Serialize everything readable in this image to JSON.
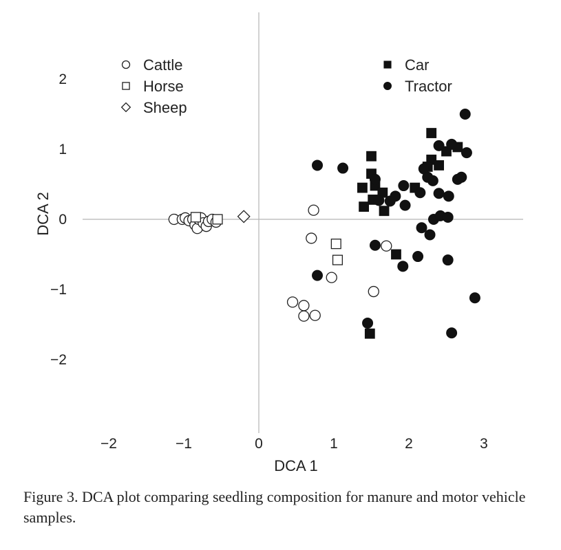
{
  "chart_data": {
    "type": "scatter",
    "xlabel": "DCA 1",
    "ylabel": "DCA 2",
    "xlim": [
      -2.5,
      3.5
    ],
    "ylim": [
      -3,
      3
    ],
    "xticks": [
      -2,
      -1,
      0,
      1,
      2,
      3
    ],
    "yticks": [
      -2,
      -1,
      0,
      1,
      2
    ],
    "tick_labels_x": [
      "−2",
      "−1",
      "0",
      "1",
      "2",
      "3"
    ],
    "tick_labels_y": [
      "−2",
      "−1",
      "0",
      "1",
      "2"
    ],
    "grid": false,
    "zero_lines": true,
    "legend": [
      {
        "group": "left",
        "entries": [
          "Cattle",
          "Horse",
          "Sheep"
        ]
      },
      {
        "group": "right",
        "entries": [
          "Car",
          "Tractor"
        ]
      }
    ],
    "series": [
      {
        "name": "Cattle",
        "marker": "circle",
        "filled": false,
        "points": [
          [
            -1.13,
            0.0
          ],
          [
            -1.02,
            0.0
          ],
          [
            -0.98,
            0.02
          ],
          [
            -0.93,
            -0.02
          ],
          [
            -0.88,
            0.0
          ],
          [
            -0.85,
            -0.08
          ],
          [
            -0.82,
            -0.13
          ],
          [
            -0.8,
            0.0
          ],
          [
            -0.77,
            0.02
          ],
          [
            -0.74,
            -0.05
          ],
          [
            -0.7,
            -0.1
          ],
          [
            -0.67,
            -0.03
          ],
          [
            -0.62,
            0.0
          ],
          [
            -0.57,
            -0.04
          ],
          [
            0.73,
            0.13
          ],
          [
            0.7,
            -0.27
          ],
          [
            0.97,
            -0.83
          ],
          [
            0.45,
            -1.18
          ],
          [
            0.6,
            -1.23
          ],
          [
            0.6,
            -1.38
          ],
          [
            0.75,
            -1.37
          ],
          [
            1.53,
            -1.03
          ],
          [
            1.7,
            -0.38
          ]
        ]
      },
      {
        "name": "Horse",
        "marker": "square",
        "filled": false,
        "points": [
          [
            -0.84,
            0.03
          ],
          [
            -0.55,
            0.0
          ],
          [
            1.03,
            -0.35
          ],
          [
            1.05,
            -0.58
          ]
        ]
      },
      {
        "name": "Sheep",
        "marker": "diamond",
        "filled": false,
        "points": [
          [
            -0.2,
            0.04
          ]
        ]
      },
      {
        "name": "Car",
        "marker": "square",
        "filled": true,
        "points": [
          [
            1.38,
            0.45
          ],
          [
            1.5,
            0.9
          ],
          [
            1.5,
            0.65
          ],
          [
            1.55,
            0.48
          ],
          [
            1.4,
            0.18
          ],
          [
            1.52,
            0.28
          ],
          [
            1.65,
            0.38
          ],
          [
            1.67,
            0.12
          ],
          [
            2.08,
            0.45
          ],
          [
            2.3,
            1.23
          ],
          [
            2.3,
            0.85
          ],
          [
            2.25,
            0.75
          ],
          [
            2.4,
            0.77
          ],
          [
            2.5,
            0.97
          ],
          [
            2.65,
            1.03
          ],
          [
            1.83,
            -0.5
          ],
          [
            1.48,
            -1.63
          ]
        ]
      },
      {
        "name": "Tractor",
        "marker": "circle",
        "filled": true,
        "points": [
          [
            0.78,
            0.77
          ],
          [
            1.12,
            0.73
          ],
          [
            1.55,
            0.57
          ],
          [
            1.6,
            0.27
          ],
          [
            1.75,
            0.26
          ],
          [
            1.82,
            0.33
          ],
          [
            1.93,
            0.48
          ],
          [
            1.95,
            0.2
          ],
          [
            2.15,
            0.38
          ],
          [
            2.2,
            0.72
          ],
          [
            2.25,
            0.6
          ],
          [
            2.32,
            0.55
          ],
          [
            2.4,
            0.37
          ],
          [
            2.53,
            0.33
          ],
          [
            2.4,
            1.05
          ],
          [
            2.57,
            1.07
          ],
          [
            2.65,
            0.57
          ],
          [
            2.7,
            0.6
          ],
          [
            2.77,
            0.95
          ],
          [
            2.75,
            1.5
          ],
          [
            2.33,
            0.0
          ],
          [
            2.42,
            0.05
          ],
          [
            2.52,
            0.03
          ],
          [
            2.17,
            -0.12
          ],
          [
            2.28,
            -0.22
          ],
          [
            2.12,
            -0.53
          ],
          [
            1.92,
            -0.67
          ],
          [
            1.55,
            -0.37
          ],
          [
            2.52,
            -0.58
          ],
          [
            0.78,
            -0.8
          ],
          [
            1.45,
            -1.48
          ],
          [
            2.57,
            -1.62
          ],
          [
            2.88,
            -1.12
          ]
        ]
      }
    ]
  },
  "caption": "Figure 3. DCA plot comparing seedling composition for manure and motor vehicle samples."
}
